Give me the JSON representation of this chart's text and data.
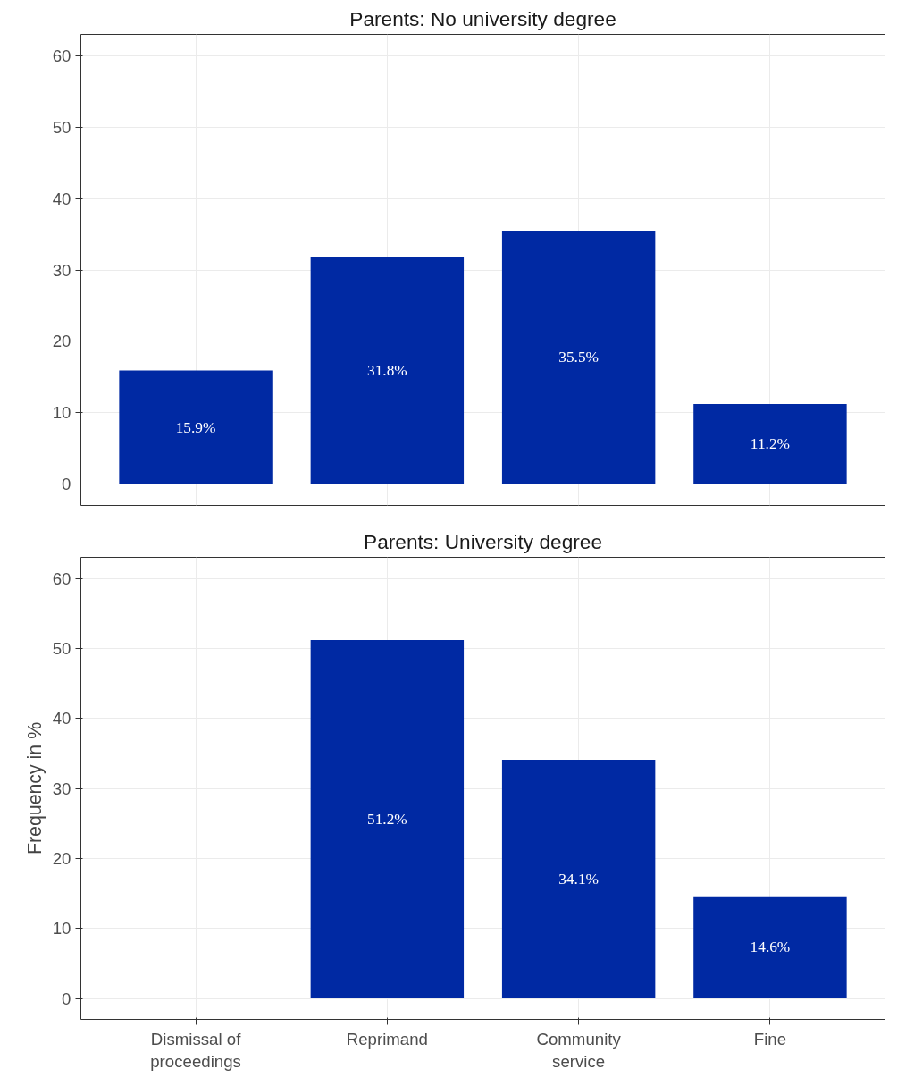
{
  "chart_data": [
    {
      "type": "bar",
      "title": "Parents: No university degree",
      "categories": [
        "Dismissal of proceedings",
        "Reprimand",
        "Community service",
        "Fine"
      ],
      "values": [
        15.9,
        31.8,
        35.5,
        11.2
      ],
      "color": "#0029a3",
      "value_labels": [
        "15.9%",
        "31.8%",
        "35.5%",
        "11.2%"
      ],
      "ylim": [
        -3,
        63
      ],
      "yticks": [
        0,
        10,
        20,
        30,
        40,
        50,
        60
      ],
      "grid": true,
      "tick_labels": "y"
    },
    {
      "type": "bar",
      "title": "Parents: University degree",
      "ylabel": "Frequency in %",
      "categories": [
        "Dismissal of proceedings",
        "Reprimand",
        "Community service",
        "Fine"
      ],
      "values": [
        null,
        51.2,
        34.1,
        14.6
      ],
      "color": "#0029a3",
      "value_labels": [
        null,
        "51.2%",
        "34.1%",
        "14.6%"
      ],
      "ylim": [
        -3,
        63
      ],
      "yticks": [
        0,
        10,
        20,
        30,
        40,
        50,
        60
      ],
      "grid": true
    }
  ]
}
